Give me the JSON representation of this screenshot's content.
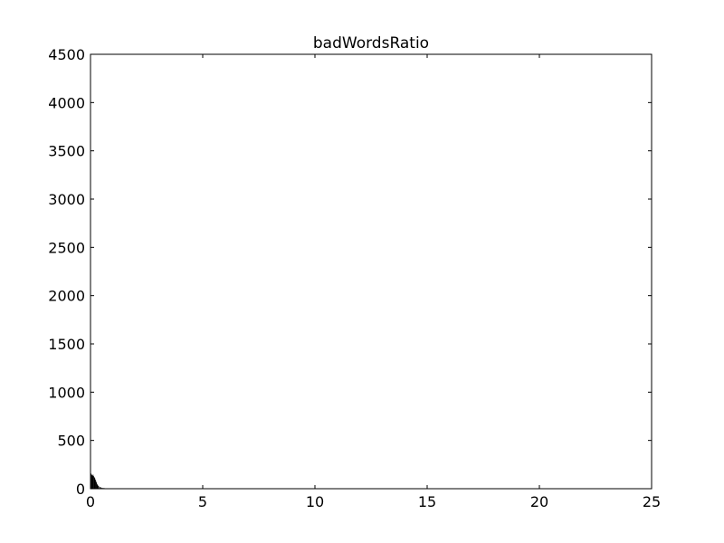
{
  "chart_data": {
    "type": "bar",
    "title": "badWordsRatio",
    "xlabel": "",
    "ylabel": "",
    "xlim": [
      0,
      25
    ],
    "ylim": [
      0,
      4500
    ],
    "xticks": [
      0,
      5,
      10,
      15,
      20,
      25
    ],
    "xtick_labels": [
      "0",
      "5",
      "10",
      "15",
      "20",
      "25"
    ],
    "yticks": [
      0,
      500,
      1000,
      1500,
      2000,
      2500,
      3000,
      3500,
      4000,
      4500
    ],
    "ytick_labels": [
      "0",
      "500",
      "1000",
      "1500",
      "2000",
      "2500",
      "3000",
      "3500",
      "4000",
      "4500"
    ],
    "grid": false,
    "legend": "none",
    "bar_color": "#000000",
    "bin_width": 0.025,
    "bin_starts": [
      0.0,
      0.025,
      0.05,
      0.075,
      0.1,
      0.125,
      0.15,
      0.175,
      0.2,
      0.225,
      0.25,
      0.275,
      0.3,
      0.325,
      0.35,
      0.4,
      0.45,
      0.5,
      0.55,
      0.6,
      0.7,
      0.8,
      1.0,
      24.3
    ],
    "values": [
      160,
      150,
      140,
      135,
      145,
      130,
      120,
      110,
      95,
      80,
      65,
      50,
      40,
      30,
      25,
      18,
      14,
      10,
      8,
      6,
      4,
      3,
      2,
      2
    ]
  }
}
